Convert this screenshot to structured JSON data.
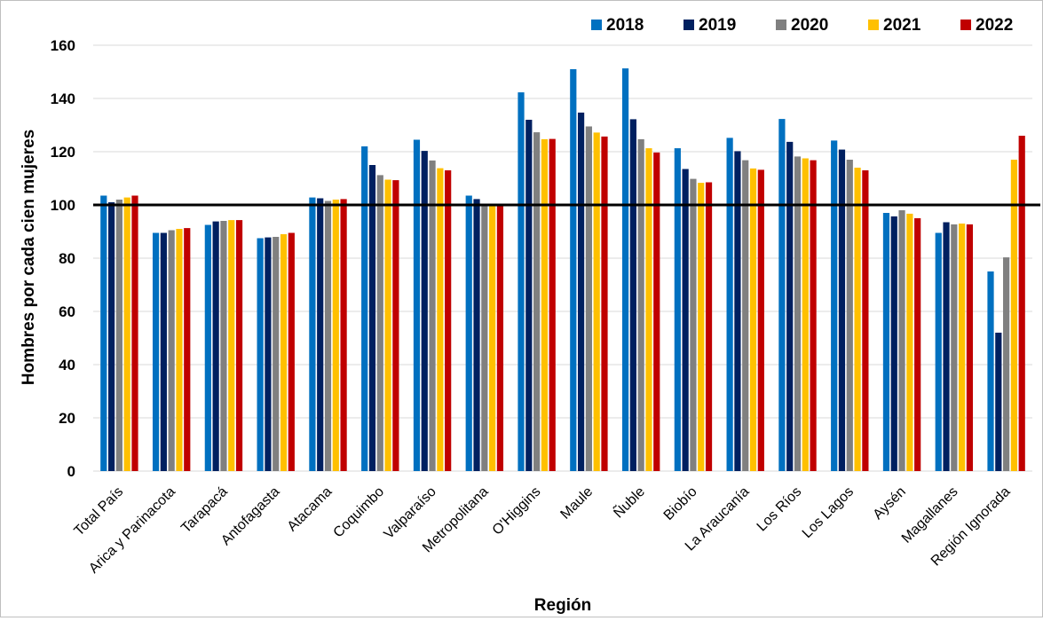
{
  "chart_data": {
    "type": "bar",
    "title": "",
    "xlabel": "Región",
    "ylabel": "Hombres por cada cien mujeres",
    "ylim": [
      0,
      160
    ],
    "yticks": [
      "0",
      "20",
      "40",
      "60",
      "80",
      "100",
      "120",
      "140",
      "160"
    ],
    "grid": true,
    "legend_position": "top-right",
    "reference_line": 100,
    "categories": [
      "Total País",
      "Arica y Parinacota",
      "Tarapacá",
      "Antofagasta",
      "Atacama",
      "Coquimbo",
      "Valparaíso",
      "Metropolitana",
      "O'Higgins",
      "Maule",
      "Ñuble",
      "Biobío",
      "La Araucanía",
      "Los Ríos",
      "Los Lagos",
      "Aysén",
      "Magallanes",
      "Región Ignorada"
    ],
    "series": [
      {
        "name": "2018",
        "color": "#0070c0",
        "values": [
          103.5,
          89.5,
          92.5,
          87.5,
          102.8,
          122,
          124.5,
          103.5,
          142.3,
          151,
          151.3,
          121.3,
          125.2,
          132.3,
          124.2,
          97,
          89.5,
          75
        ]
      },
      {
        "name": "2019",
        "color": "#002060",
        "values": [
          101,
          89.5,
          93.8,
          87.8,
          102.5,
          115,
          120.3,
          102.2,
          132,
          134.7,
          132.2,
          113.5,
          120.2,
          123.7,
          120.8,
          95.7,
          93.5,
          52
        ]
      },
      {
        "name": "2020",
        "color": "#808080",
        "values": [
          102,
          90.5,
          94,
          88,
          101.5,
          111.2,
          116.7,
          100.5,
          127.3,
          129.5,
          124.7,
          109.8,
          116.8,
          118.2,
          117,
          98,
          92.7,
          80.3
        ]
      },
      {
        "name": "2021",
        "color": "#ffc000",
        "values": [
          102.8,
          91,
          94.3,
          89,
          102,
          109.5,
          113.8,
          99.5,
          124.7,
          127.2,
          121.3,
          108.3,
          113.7,
          117.5,
          114,
          96.7,
          93,
          117
        ]
      },
      {
        "name": "2022",
        "color": "#c00000",
        "values": [
          103.5,
          91.3,
          94.3,
          89.5,
          102.2,
          109.3,
          113,
          99.5,
          124.8,
          125.7,
          119.7,
          108.5,
          113.2,
          116.8,
          113,
          95,
          92.7,
          126
        ]
      }
    ]
  }
}
